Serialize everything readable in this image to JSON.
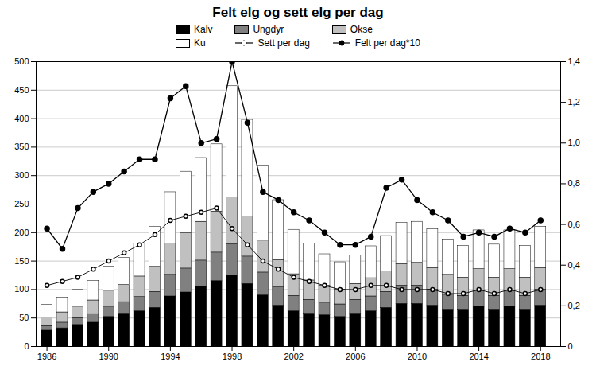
{
  "chart_data": {
    "type": "bar",
    "title": "Felt elg og sett elg per dag",
    "stacked": true,
    "grid": true,
    "legend": "top",
    "x": [
      1986,
      1987,
      1988,
      1989,
      1990,
      1991,
      1992,
      1993,
      1994,
      1995,
      1996,
      1997,
      1998,
      1999,
      2000,
      2001,
      2002,
      2003,
      2004,
      2005,
      2006,
      2007,
      2008,
      2009,
      2010,
      2011,
      2012,
      2013,
      2014,
      2015,
      2016,
      2017,
      2018
    ],
    "xlim": [
      1985.3,
      2019.3
    ],
    "xticks": [
      1986,
      1990,
      1994,
      1998,
      2002,
      2006,
      2010,
      2014,
      2018
    ],
    "ylim": [
      0,
      500
    ],
    "yticks": [
      0,
      50,
      100,
      150,
      200,
      250,
      300,
      350,
      400,
      450,
      500
    ],
    "y2lim": [
      0,
      1.4
    ],
    "y2ticks": [
      0,
      {
        "value": 0.2,
        "label": "0,2"
      },
      {
        "value": 0.4,
        "label": "0,4"
      },
      {
        "value": 0.6,
        "label": "0,6"
      },
      {
        "value": 0.8,
        "label": "0,8"
      },
      {
        "value": 1.0,
        "label": "1,0"
      },
      {
        "value": 1.2,
        "label": "1,2"
      },
      {
        "value": 1.4,
        "label": "1,4"
      }
    ],
    "series": [
      {
        "name": "Kalv",
        "type": "bar",
        "color": "#000000",
        "values": [
          28,
          32,
          38,
          42,
          52,
          58,
          62,
          68,
          88,
          95,
          105,
          115,
          125,
          110,
          90,
          72,
          62,
          58,
          55,
          52,
          58,
          62,
          68,
          75,
          75,
          72,
          65,
          65,
          70,
          65,
          70,
          65,
          72
        ]
      },
      {
        "name": "Ungdyr",
        "type": "bar",
        "color": "#808080",
        "values": [
          8,
          10,
          12,
          15,
          18,
          20,
          25,
          28,
          38,
          42,
          46,
          50,
          55,
          48,
          40,
          32,
          27,
          24,
          22,
          22,
          24,
          26,
          28,
          32,
          32,
          28,
          26,
          24,
          28,
          24,
          28,
          24,
          28
        ]
      },
      {
        "name": "Okse",
        "type": "bar",
        "color": "#c0c0c0",
        "values": [
          15,
          18,
          20,
          24,
          28,
          30,
          36,
          44,
          55,
          62,
          68,
          72,
          82,
          70,
          56,
          48,
          38,
          34,
          30,
          26,
          28,
          32,
          36,
          38,
          40,
          38,
          35,
          32,
          38,
          32,
          38,
          32,
          38
        ]
      },
      {
        "name": "Ku",
        "type": "bar",
        "color": "#ffffff",
        "values": [
          22,
          26,
          30,
          34,
          42,
          48,
          58,
          70,
          90,
          108,
          112,
          118,
          195,
          170,
          132,
          105,
          78,
          65,
          55,
          48,
          50,
          56,
          62,
          72,
          72,
          68,
          62,
          56,
          68,
          58,
          68,
          56,
          72
        ]
      },
      {
        "name": "Sett per dag",
        "type": "line",
        "axis": "y2",
        "color": "#000000",
        "marker": "circle-open",
        "values": [
          0.3,
          0.32,
          0.34,
          0.38,
          0.42,
          0.46,
          0.5,
          0.55,
          0.62,
          0.64,
          0.66,
          0.68,
          0.58,
          0.5,
          0.42,
          0.38,
          0.34,
          0.32,
          0.3,
          0.28,
          0.28,
          0.3,
          0.3,
          0.28,
          0.28,
          0.28,
          0.26,
          0.26,
          0.28,
          0.26,
          0.28,
          0.26,
          0.28
        ]
      },
      {
        "name": "Felt per dag*10",
        "type": "line",
        "axis": "y2",
        "color": "#000000",
        "marker": "circle",
        "values": [
          0.58,
          0.48,
          0.68,
          0.76,
          0.8,
          0.86,
          0.92,
          0.92,
          1.22,
          1.28,
          1.0,
          1.02,
          1.4,
          1.1,
          0.76,
          0.72,
          0.66,
          0.62,
          0.56,
          0.5,
          0.5,
          0.54,
          0.78,
          0.82,
          0.72,
          0.66,
          0.62,
          0.54,
          0.56,
          0.54,
          0.58,
          0.56,
          0.62
        ]
      }
    ]
  }
}
